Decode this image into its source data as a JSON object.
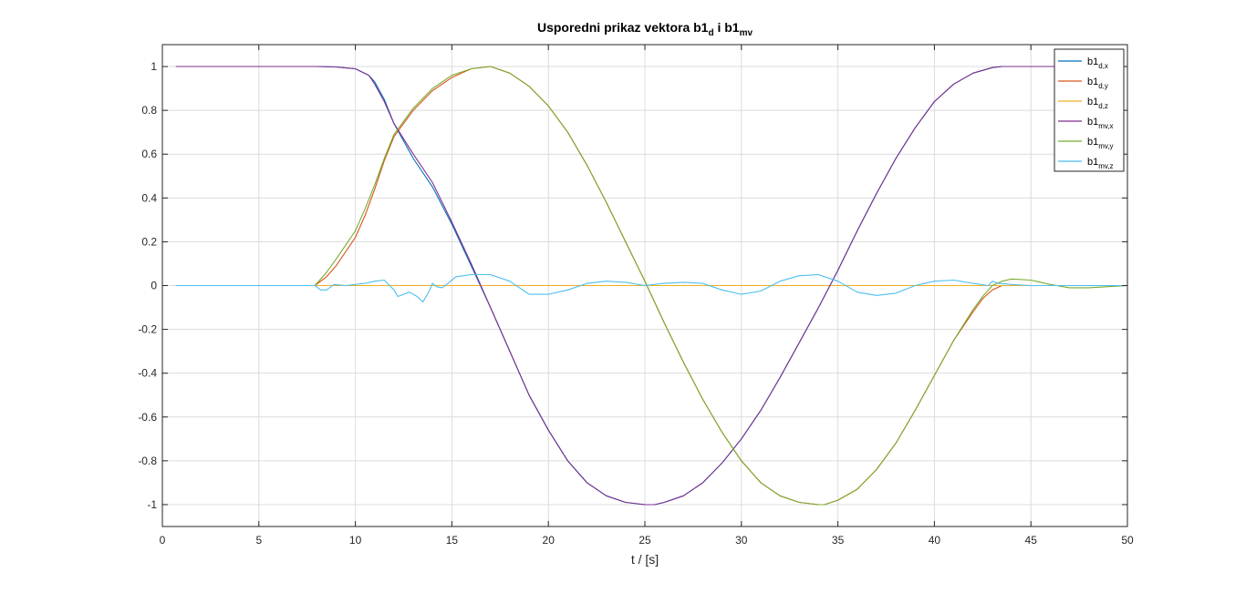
{
  "chart_data": {
    "type": "line",
    "title_parts": {
      "main": "Usporedni prikaz vektora b1",
      "sub1": "d",
      "mid": " i b1",
      "sub2": "mv"
    },
    "xlabel": "t / [s]",
    "ylabel": "",
    "xlim": [
      0,
      50
    ],
    "ylim": [
      -1.1,
      1.1
    ],
    "xticks": [
      0,
      5,
      10,
      15,
      20,
      25,
      30,
      35,
      40,
      45,
      50
    ],
    "yticks": [
      -1,
      -0.8,
      -0.6,
      -0.4,
      -0.2,
      0,
      0.2,
      0.4,
      0.6,
      0.8,
      1
    ],
    "grid": true,
    "legend_position": "top-right",
    "series": [
      {
        "name": "b1",
        "sub": "d,x",
        "color": "#0072BD",
        "x": [
          0.7,
          8,
          9,
          10,
          10.7,
          11,
          11.5,
          12,
          13,
          14,
          15,
          16,
          17,
          18,
          19,
          20,
          21,
          22,
          23,
          24,
          25,
          25.5,
          26,
          27,
          28,
          29,
          30,
          31,
          32,
          33,
          34,
          35,
          36,
          37,
          38,
          39,
          40,
          41,
          42,
          43,
          43.5,
          44,
          50
        ],
        "y": [
          1,
          1,
          0.998,
          0.99,
          0.96,
          0.93,
          0.85,
          0.74,
          0.58,
          0.45,
          0.28,
          0.09,
          -0.1,
          -0.3,
          -0.5,
          -0.66,
          -0.8,
          -0.9,
          -0.96,
          -0.99,
          -1,
          -1,
          -0.99,
          -0.96,
          -0.9,
          -0.81,
          -0.7,
          -0.57,
          -0.42,
          -0.26,
          -0.1,
          0.07,
          0.25,
          0.42,
          0.58,
          0.72,
          0.84,
          0.92,
          0.97,
          0.995,
          1,
          1,
          1
        ]
      },
      {
        "name": "b1",
        "sub": "d,y",
        "color": "#D95319",
        "x": [
          0.7,
          7.9,
          8.5,
          9,
          10,
          10.5,
          11,
          11.5,
          12,
          13,
          14,
          15,
          16,
          17,
          18,
          19,
          20,
          21,
          22,
          23,
          24,
          25,
          26,
          27,
          28,
          29,
          30,
          31,
          32,
          33,
          34,
          34.3,
          35,
          36,
          37,
          38,
          39,
          40,
          41,
          42,
          42.5,
          43,
          43.5,
          44,
          50
        ],
        "y": [
          0,
          0,
          0.04,
          0.09,
          0.22,
          0.32,
          0.44,
          0.57,
          0.68,
          0.8,
          0.89,
          0.95,
          0.99,
          1,
          0.97,
          0.91,
          0.82,
          0.7,
          0.55,
          0.38,
          0.2,
          0.02,
          -0.17,
          -0.35,
          -0.52,
          -0.67,
          -0.8,
          -0.9,
          -0.96,
          -0.99,
          -1,
          -1,
          -0.98,
          -0.93,
          -0.84,
          -0.72,
          -0.57,
          -0.41,
          -0.25,
          -0.12,
          -0.06,
          -0.02,
          0,
          0,
          0
        ]
      },
      {
        "name": "b1",
        "sub": "d,z",
        "color": "#EDB120",
        "x": [
          0.7,
          50
        ],
        "y": [
          0,
          0
        ]
      },
      {
        "name": "b1",
        "sub": "mv,x",
        "color": "#7E2F8E",
        "x": [
          0.7,
          8,
          9,
          10,
          10.7,
          11,
          11.5,
          12,
          13,
          14,
          15,
          16,
          17,
          18,
          19,
          20,
          21,
          22,
          23,
          24,
          25,
          25.5,
          26,
          27,
          28,
          29,
          30,
          31,
          32,
          33,
          34,
          35,
          36,
          37,
          38,
          39,
          40,
          41,
          42,
          43,
          43.5,
          44,
          50
        ],
        "y": [
          1,
          1,
          0.998,
          0.99,
          0.96,
          0.92,
          0.84,
          0.74,
          0.6,
          0.47,
          0.29,
          0.1,
          -0.1,
          -0.3,
          -0.5,
          -0.66,
          -0.8,
          -0.9,
          -0.96,
          -0.99,
          -1,
          -1,
          -0.99,
          -0.96,
          -0.9,
          -0.81,
          -0.7,
          -0.57,
          -0.42,
          -0.26,
          -0.1,
          0.07,
          0.25,
          0.42,
          0.58,
          0.72,
          0.84,
          0.92,
          0.97,
          0.995,
          1,
          1,
          1
        ]
      },
      {
        "name": "b1",
        "sub": "mv,y",
        "color": "#77AC30",
        "x": [
          0.7,
          7.9,
          8.5,
          9,
          10,
          10.5,
          11,
          11.5,
          12,
          13,
          14,
          15,
          16,
          17,
          18,
          19,
          20,
          21,
          22,
          23,
          24,
          25,
          26,
          27,
          28,
          29,
          30,
          31,
          32,
          33,
          34,
          34.3,
          35,
          36,
          37,
          38,
          39,
          40,
          41,
          42,
          42.5,
          43,
          43.5,
          44,
          45,
          46,
          47,
          48,
          49,
          50
        ],
        "y": [
          0,
          0,
          0.06,
          0.12,
          0.25,
          0.35,
          0.46,
          0.58,
          0.69,
          0.81,
          0.9,
          0.96,
          0.99,
          1,
          0.97,
          0.91,
          0.82,
          0.7,
          0.55,
          0.38,
          0.2,
          0.02,
          -0.17,
          -0.35,
          -0.52,
          -0.67,
          -0.8,
          -0.9,
          -0.96,
          -0.99,
          -1,
          -1,
          -0.98,
          -0.93,
          -0.84,
          -0.72,
          -0.57,
          -0.41,
          -0.25,
          -0.11,
          -0.05,
          0,
          0.02,
          0.03,
          0.025,
          0.005,
          -0.01,
          -0.01,
          -0.005,
          0
        ]
      },
      {
        "name": "b1",
        "sub": "mv,z",
        "color": "#4DBEEE",
        "x": [
          0.7,
          7.9,
          8.2,
          8.5,
          8.9,
          9.5,
          10.5,
          11,
          11.5,
          12,
          12.2,
          12.5,
          12.8,
          13.2,
          13.5,
          13.8,
          14,
          14.2,
          14.5,
          14.8,
          15.2,
          16,
          17,
          18,
          19,
          20,
          21,
          22,
          23,
          24,
          25,
          26,
          27,
          28,
          29,
          30,
          31,
          32,
          33,
          34,
          35,
          36,
          37,
          38,
          39,
          40,
          41,
          42,
          42.8,
          43,
          43.3,
          44,
          45,
          46,
          47,
          48,
          49,
          50
        ],
        "y": [
          0,
          0,
          -0.02,
          -0.02,
          0.005,
          0,
          0.01,
          0.02,
          0.025,
          -0.02,
          -0.05,
          -0.04,
          -0.03,
          -0.05,
          -0.075,
          -0.03,
          0.01,
          -0.005,
          -0.01,
          0.01,
          0.04,
          0.05,
          0.05,
          0.02,
          -0.04,
          -0.04,
          -0.02,
          0.01,
          0.02,
          0.015,
          0,
          0.01,
          0.015,
          0.01,
          -0.02,
          -0.04,
          -0.025,
          0.02,
          0.045,
          0.05,
          0.02,
          -0.03,
          -0.045,
          -0.035,
          0,
          0.02,
          0.025,
          0.01,
          0,
          0.02,
          0.01,
          0.005,
          0,
          0,
          0,
          0,
          0,
          0
        ]
      }
    ]
  }
}
